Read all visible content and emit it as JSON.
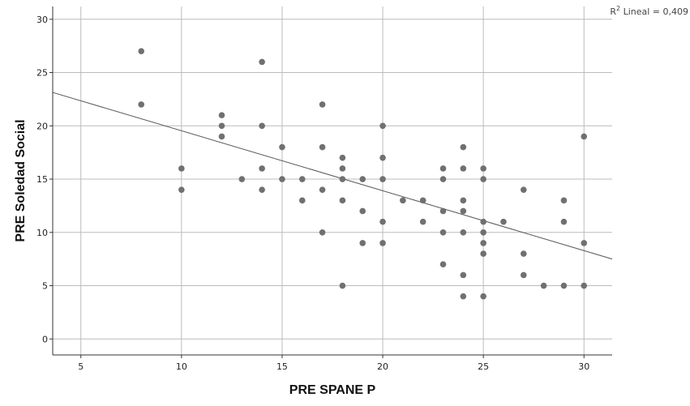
{
  "chart_data": {
    "type": "scatter",
    "xlabel": "PRE SPANE P",
    "ylabel": "PRE Soledad Social",
    "xlim": [
      3.6,
      31.4
    ],
    "ylim": [
      -1.5,
      31.2
    ],
    "xticks": [
      5,
      10,
      15,
      20,
      25,
      30
    ],
    "yticks": [
      0,
      5,
      10,
      15,
      20,
      25,
      30
    ],
    "grid": true,
    "fit_line": {
      "slope": -0.5624,
      "intercept": 25.16
    },
    "r2_label": {
      "prefix": "R",
      "sup": "2",
      "text": " Lineal = 0,409"
    },
    "colors": {
      "points": "#707070",
      "grid": "#bcbcbc",
      "fit_line": "#555555",
      "axes": "#333333"
    },
    "points": [
      {
        "x": 8,
        "y": 27
      },
      {
        "x": 8,
        "y": 22
      },
      {
        "x": 10,
        "y": 16
      },
      {
        "x": 10,
        "y": 14
      },
      {
        "x": 12,
        "y": 21
      },
      {
        "x": 12,
        "y": 20
      },
      {
        "x": 12,
        "y": 19
      },
      {
        "x": 13,
        "y": 15
      },
      {
        "x": 14,
        "y": 26
      },
      {
        "x": 14,
        "y": 20
      },
      {
        "x": 14,
        "y": 16
      },
      {
        "x": 14,
        "y": 14
      },
      {
        "x": 15,
        "y": 18
      },
      {
        "x": 15,
        "y": 15
      },
      {
        "x": 16,
        "y": 15
      },
      {
        "x": 16,
        "y": 13
      },
      {
        "x": 17,
        "y": 22
      },
      {
        "x": 17,
        "y": 18
      },
      {
        "x": 17,
        "y": 14
      },
      {
        "x": 17,
        "y": 10
      },
      {
        "x": 18,
        "y": 17
      },
      {
        "x": 18,
        "y": 16
      },
      {
        "x": 18,
        "y": 15
      },
      {
        "x": 18,
        "y": 13
      },
      {
        "x": 18,
        "y": 5
      },
      {
        "x": 19,
        "y": 15
      },
      {
        "x": 19,
        "y": 12
      },
      {
        "x": 19,
        "y": 9
      },
      {
        "x": 20,
        "y": 20
      },
      {
        "x": 20,
        "y": 17
      },
      {
        "x": 20,
        "y": 15
      },
      {
        "x": 20,
        "y": 11
      },
      {
        "x": 20,
        "y": 9
      },
      {
        "x": 21,
        "y": 13
      },
      {
        "x": 22,
        "y": 13
      },
      {
        "x": 22,
        "y": 11
      },
      {
        "x": 23,
        "y": 16
      },
      {
        "x": 23,
        "y": 15
      },
      {
        "x": 23,
        "y": 12
      },
      {
        "x": 23,
        "y": 10
      },
      {
        "x": 23,
        "y": 7
      },
      {
        "x": 24,
        "y": 18
      },
      {
        "x": 24,
        "y": 16
      },
      {
        "x": 24,
        "y": 13
      },
      {
        "x": 24,
        "y": 12
      },
      {
        "x": 24,
        "y": 10
      },
      {
        "x": 24,
        "y": 6
      },
      {
        "x": 24,
        "y": 4
      },
      {
        "x": 25,
        "y": 16
      },
      {
        "x": 25,
        "y": 15
      },
      {
        "x": 25,
        "y": 11
      },
      {
        "x": 25,
        "y": 10
      },
      {
        "x": 25,
        "y": 9
      },
      {
        "x": 25,
        "y": 8
      },
      {
        "x": 25,
        "y": 4
      },
      {
        "x": 26,
        "y": 11
      },
      {
        "x": 27,
        "y": 14
      },
      {
        "x": 27,
        "y": 8
      },
      {
        "x": 27,
        "y": 6
      },
      {
        "x": 28,
        "y": 5
      },
      {
        "x": 29,
        "y": 13
      },
      {
        "x": 29,
        "y": 11
      },
      {
        "x": 29,
        "y": 5
      },
      {
        "x": 30,
        "y": 19
      },
      {
        "x": 30,
        "y": 9
      },
      {
        "x": 30,
        "y": 5
      }
    ]
  }
}
